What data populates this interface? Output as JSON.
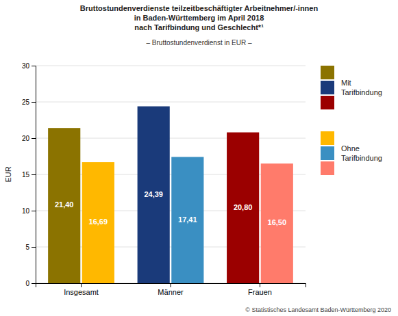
{
  "chart_data": {
    "type": "bar",
    "title": "Bruttostundenverdienste teilzeitbeschäftigter Arbeitnehmer/-innen\nin Baden-Württemberg im April 2018\nnach Tarifbindung und Geschlecht*¹",
    "subtitle": "– Bruttostundenverdienst in EUR –",
    "y_label": "EUR",
    "categories": [
      "Insgesamt",
      "Männer",
      "Frauen"
    ],
    "series": [
      {
        "name": "Mit\nTarifbindung",
        "colors": [
          "#8B7300",
          "#1A3A7A",
          "#9B0000"
        ],
        "values": [
          21.4,
          24.39,
          20.8
        ],
        "value_labels": [
          "21,40",
          "24,39",
          "20,80"
        ]
      },
      {
        "name": "Ohne\nTarifbindung",
        "colors": [
          "#FFB800",
          "#3A8FC2",
          "#FF7B6B"
        ],
        "values": [
          16.69,
          17.41,
          16.5
        ],
        "value_labels": [
          "16,69",
          "17,41",
          "16,50"
        ]
      }
    ],
    "ylim": [
      0,
      30
    ],
    "yticks": [
      0,
      5,
      10,
      15,
      20,
      25,
      30
    ],
    "grid": true,
    "data_labels": true,
    "annotations": [
      "© Statistisches Landesamt Baden-Württemberg 2020"
    ]
  }
}
